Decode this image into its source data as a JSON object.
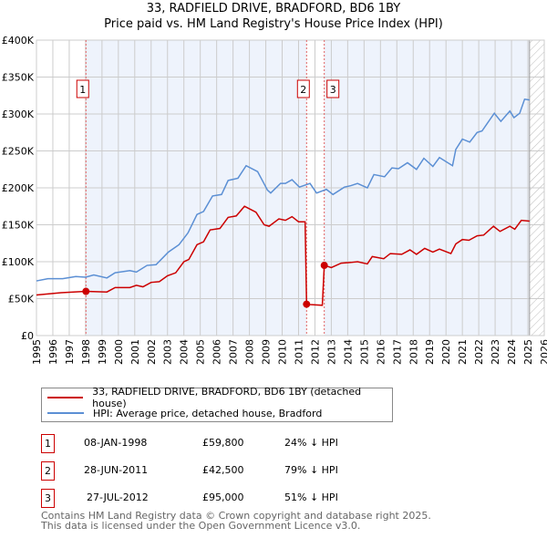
{
  "chart_data": {
    "type": "line",
    "title": "33, RADFIELD DRIVE, BRADFORD, BD6 1BY",
    "subtitle": "Price paid vs. HM Land Registry's House Price Index (HPI)",
    "xlim": [
      1995,
      2026
    ],
    "ylim": [
      0,
      400000
    ],
    "x_ticks": [
      1995,
      1996,
      1997,
      1998,
      1999,
      2000,
      2001,
      2002,
      2003,
      2004,
      2005,
      2006,
      2007,
      2008,
      2009,
      2010,
      2011,
      2012,
      2013,
      2014,
      2015,
      2016,
      2017,
      2018,
      2019,
      2020,
      2021,
      2022,
      2023,
      2024,
      2025,
      2026
    ],
    "y_ticks": [
      {
        "v": 0,
        "label": "£0"
      },
      {
        "v": 50000,
        "label": "£50K"
      },
      {
        "v": 100000,
        "label": "£100K"
      },
      {
        "v": 150000,
        "label": "£150K"
      },
      {
        "v": 200000,
        "label": "£200K"
      },
      {
        "v": 250000,
        "label": "£250K"
      },
      {
        "v": 300000,
        "label": "£300K"
      },
      {
        "v": 350000,
        "label": "£350K"
      },
      {
        "v": 400000,
        "label": "£400K"
      }
    ],
    "grid": true,
    "series": [
      {
        "name": "33, RADFIELD DRIVE, BRADFORD, BD6 1BY (detached house)",
        "color": "#cc0000",
        "x": [
          1995,
          1996.5,
          1998.02,
          1999.3,
          1999.8,
          2000.7,
          2001.1,
          2001.5,
          2002,
          2002.5,
          2003,
          2003.5,
          2004,
          2004.3,
          2004.8,
          2005.2,
          2005.6,
          2006.2,
          2006.7,
          2007.2,
          2007.7,
          2008.4,
          2008.9,
          2009.2,
          2009.8,
          2010.2,
          2010.6,
          2011.0,
          2011.4,
          2011.49,
          2011.7,
          2012.45,
          2012.57,
          2013.0,
          2013.6,
          2014.2,
          2014.6,
          2015.2,
          2015.5,
          2016.2,
          2016.6,
          2017.3,
          2017.8,
          2018.2,
          2018.7,
          2019.2,
          2019.6,
          2020.3,
          2020.6,
          2021.0,
          2021.4,
          2021.9,
          2022.3,
          2022.9,
          2023.3,
          2023.9,
          2024.2,
          2024.6,
          2025.1
        ],
        "y": [
          55000,
          58000,
          59800,
          59000,
          65000,
          65000,
          68000,
          66000,
          72000,
          73000,
          81000,
          85000,
          100000,
          103000,
          123000,
          127000,
          143000,
          145000,
          160000,
          162000,
          175000,
          167000,
          150000,
          148000,
          158000,
          156000,
          161000,
          154000,
          154000,
          42500,
          42000,
          41000,
          95000,
          92000,
          98000,
          99000,
          100000,
          97000,
          107000,
          104000,
          111000,
          110000,
          116000,
          110000,
          118000,
          113000,
          117000,
          111000,
          124000,
          130000,
          129000,
          135000,
          136000,
          148000,
          141000,
          148000,
          144000,
          156000,
          155000
        ]
      },
      {
        "name": "HPI: Average price, detached house, Bradford",
        "color": "#5b8fd4",
        "x": [
          1995,
          1995.7,
          1996.6,
          1997.4,
          1998.0,
          1998.5,
          1999.3,
          1999.8,
          2000.7,
          2001.1,
          2001.75,
          2002.3,
          2003.05,
          2003.7,
          2004.25,
          2004.8,
          2005.2,
          2005.75,
          2006.3,
          2006.7,
          2007.3,
          2007.8,
          2008.5,
          2009.1,
          2009.3,
          2009.9,
          2010.2,
          2010.6,
          2011.05,
          2011.7,
          2012.1,
          2012.7,
          2013.1,
          2013.8,
          2014.2,
          2014.6,
          2015.2,
          2015.6,
          2016.25,
          2016.7,
          2017.1,
          2017.65,
          2018.2,
          2018.65,
          2019.2,
          2019.6,
          2020.4,
          2020.6,
          2021.0,
          2021.45,
          2021.9,
          2022.2,
          2022.95,
          2023.35,
          2023.9,
          2024.15,
          2024.5,
          2024.8,
          2025.1
        ],
        "y": [
          74000,
          77000,
          77000,
          80000,
          79000,
          82000,
          78000,
          85000,
          88000,
          86000,
          95000,
          96000,
          113000,
          123000,
          139000,
          164000,
          168000,
          189000,
          191000,
          210000,
          213000,
          230000,
          222000,
          197000,
          193000,
          206000,
          206000,
          211000,
          201000,
          206000,
          193000,
          198000,
          191000,
          201000,
          203000,
          206000,
          200000,
          218000,
          215000,
          227000,
          226000,
          234000,
          225000,
          240000,
          229000,
          241000,
          230000,
          252000,
          266000,
          262000,
          275000,
          277000,
          301000,
          290000,
          304000,
          295000,
          301000,
          320000,
          319000
        ]
      }
    ],
    "sales": [
      {
        "n": "1",
        "x": 1998.02,
        "price": 59800,
        "date": "08-JAN-1998",
        "price_label": "£59,800",
        "hpi": "24% ↓ HPI"
      },
      {
        "n": "2",
        "x": 2011.49,
        "price": 42500,
        "date": "28-JUN-2011",
        "price_label": "£42,500",
        "hpi": "79% ↓ HPI"
      },
      {
        "n": "3",
        "x": 2012.57,
        "price": 95000,
        "date": "27-JUL-2012",
        "price_label": "£95,000",
        "hpi": "51% ↓ HPI"
      }
    ],
    "shaded_ranges": [
      [
        1998.02,
        2011.49
      ],
      [
        2012.57,
        2025.1
      ]
    ],
    "hatched_from": 2025.1,
    "legend": "below"
  },
  "title_line1": "33, RADFIELD DRIVE, BRADFORD, BD6 1BY",
  "title_line2": "Price paid vs. HM Land Registry's House Price Index (HPI)",
  "legend": {
    "red": "33, RADFIELD DRIVE, BRADFORD, BD6 1BY (detached house)",
    "blue": "HPI: Average price, detached house, Bradford"
  },
  "footer": {
    "line1": "Contains HM Land Registry data © Crown copyright and database right 2025.",
    "line2": "This data is licensed under the Open Government Licence v3.0."
  }
}
